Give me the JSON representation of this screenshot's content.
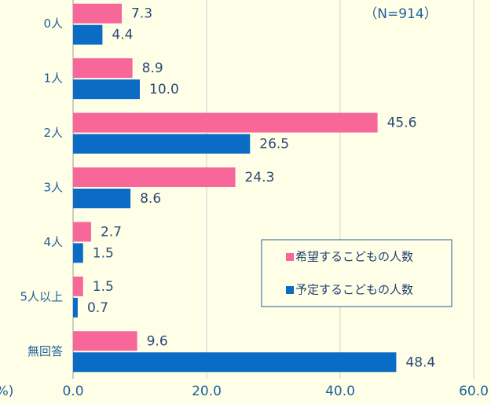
{
  "chart_data": {
    "type": "hbar",
    "categories": [
      "0人",
      "1人",
      "2人",
      "3人",
      "4人",
      "5人以上",
      "無回答"
    ],
    "series": [
      {
        "name": "希望するこどもの人数",
        "color": "#f8679a",
        "values": [
          7.3,
          8.9,
          45.6,
          24.3,
          2.7,
          1.5,
          9.6
        ],
        "value_labels": [
          "7.3",
          "8.9",
          "45.6",
          "24.3",
          "2.7",
          "1.5",
          "9.6"
        ]
      },
      {
        "name": "予定するこどもの人数",
        "color": "#0a6cc4",
        "values": [
          4.4,
          10.0,
          26.5,
          8.6,
          1.5,
          0.7,
          48.4
        ],
        "value_labels": [
          "4.4",
          "10.0",
          "26.5",
          "8.6",
          "1.5",
          "0.7",
          "48.4"
        ]
      }
    ],
    "xlim": [
      0,
      60
    ],
    "xticks": [
      {
        "value": 0,
        "label": "0.0"
      },
      {
        "value": 20,
        "label": "20.0"
      },
      {
        "value": 40,
        "label": "40.0"
      },
      {
        "value": 60,
        "label": "60.0"
      }
    ],
    "x_axis_label": "(%)",
    "annotation": "（N=914）",
    "grid": true,
    "legend": "lower right"
  }
}
